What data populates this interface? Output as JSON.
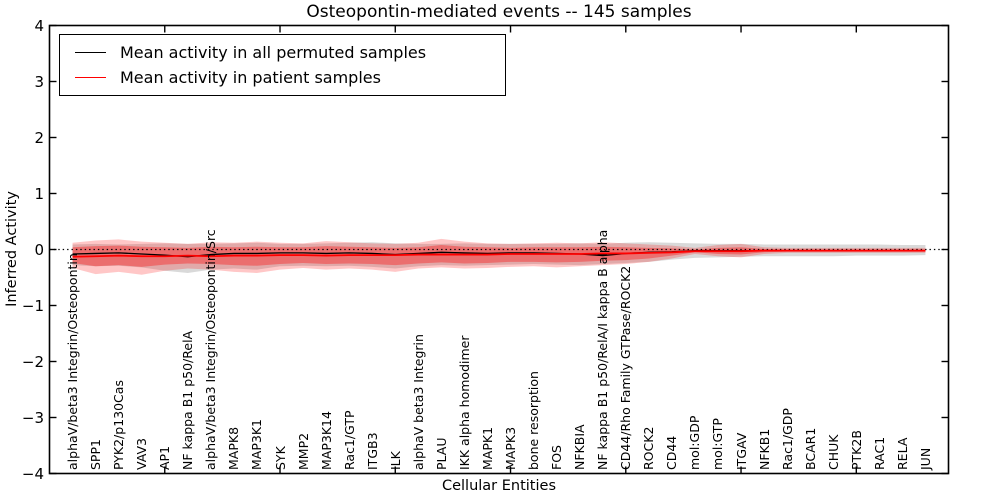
{
  "chart_data": {
    "type": "line",
    "title": "Osteopontin-mediated events -- 145 samples",
    "xlabel": "Cellular Entities",
    "ylabel": "Inferred Activity",
    "ylim": [
      -4,
      4
    ],
    "xlim": [
      0,
      39
    ],
    "grid": false,
    "zero_line": 0,
    "yticks": [
      {
        "v": 4,
        "label": "4"
      },
      {
        "v": 3,
        "label": "3"
      },
      {
        "v": 2,
        "label": "2"
      },
      {
        "v": 1,
        "label": "1"
      },
      {
        "v": 0,
        "label": "0"
      },
      {
        "v": -1,
        "label": "−1"
      },
      {
        "v": -2,
        "label": "−2"
      },
      {
        "v": -3,
        "label": "−3"
      },
      {
        "v": -4,
        "label": "−4"
      }
    ],
    "xticks_unlabeled": [
      5,
      10,
      15,
      20,
      25,
      30,
      35
    ],
    "categories": [
      "alphaV/beta3 Integrin/Osteopontin",
      "SPP1",
      "PYK2/p130Cas",
      "VAV3",
      "AP1",
      "NF kappa B1 p50/RelA",
      "alphaV/beta3 Integrin/Osteopontin/Src",
      "MAPK8",
      "MAP3K1",
      "SYK",
      "MMP2",
      "MAP3K14",
      "Rac1/GTP",
      "ITGB3",
      "ILK",
      "alphaV beta3 Integrin",
      "PLAU",
      "IKK alpha homodimer",
      "MAPK1",
      "MAPK3",
      "bone resorption",
      "FOS",
      "NFKBIA",
      "NF kappa B1 p50/RelA/I kappa B alpha",
      "CD44/Rho Family GTPase/ROCK2",
      "ROCK2",
      "CD44",
      "mol:GDP",
      "mol:GTP",
      "ITGAV",
      "NFKB1",
      "Rac1/GDP",
      "BCAR1",
      "CHUK",
      "PTK2B",
      "RAC1",
      "RELA",
      "JUN"
    ],
    "series": [
      {
        "name": "Mean activity in all permuted samples",
        "color": "#000000",
        "values": [
          -0.08,
          -0.07,
          -0.06,
          -0.08,
          -0.1,
          -0.13,
          -0.09,
          -0.07,
          -0.07,
          -0.06,
          -0.06,
          -0.07,
          -0.06,
          -0.07,
          -0.09,
          -0.07,
          -0.05,
          -0.06,
          -0.07,
          -0.06,
          -0.06,
          -0.07,
          -0.08,
          -0.11,
          -0.07,
          -0.05,
          -0.04,
          -0.02,
          -0.02,
          -0.02,
          -0.02,
          -0.02,
          -0.02,
          -0.02,
          -0.02,
          -0.02,
          -0.02,
          -0.02
        ]
      },
      {
        "name": "Mean activity in patient samples",
        "color": "#ff0000",
        "values": [
          -0.13,
          -0.12,
          -0.11,
          -0.12,
          -0.12,
          -0.11,
          -0.12,
          -0.11,
          -0.11,
          -0.1,
          -0.1,
          -0.11,
          -0.1,
          -0.1,
          -0.1,
          -0.09,
          -0.09,
          -0.09,
          -0.09,
          -0.08,
          -0.08,
          -0.08,
          -0.08,
          -0.07,
          -0.07,
          -0.06,
          -0.05,
          -0.03,
          -0.03,
          -0.03,
          -0.02,
          -0.02,
          -0.02,
          -0.02,
          -0.02,
          -0.02,
          -0.02,
          -0.02
        ]
      }
    ],
    "bands": [
      {
        "name": "permuted-samples-range",
        "color": "rgba(0,0,0,0.15)",
        "hi": [
          0.09,
          0.1,
          0.09,
          0.1,
          0.11,
          0.1,
          0.1,
          0.11,
          0.12,
          0.1,
          0.1,
          0.11,
          0.12,
          0.13,
          0.11,
          0.1,
          0.1,
          0.11,
          0.1,
          0.1,
          0.1,
          0.1,
          0.11,
          0.1,
          0.12,
          0.13,
          0.12,
          0.11,
          0.1,
          0.1,
          0.09,
          0.09,
          0.09,
          0.09,
          0.09,
          0.09,
          0.08,
          0.08
        ],
        "lo": [
          -0.28,
          -0.3,
          -0.29,
          -0.32,
          -0.38,
          -0.42,
          -0.36,
          -0.34,
          -0.36,
          -0.3,
          -0.29,
          -0.3,
          -0.29,
          -0.31,
          -0.34,
          -0.3,
          -0.28,
          -0.29,
          -0.28,
          -0.27,
          -0.26,
          -0.27,
          -0.28,
          -0.26,
          -0.24,
          -0.22,
          -0.18,
          -0.15,
          -0.14,
          -0.13,
          -0.12,
          -0.12,
          -0.12,
          -0.12,
          -0.11,
          -0.11,
          -0.11,
          -0.1
        ]
      },
      {
        "name": "patient-samples-outer-range",
        "color": "rgba(255,0,0,0.22)",
        "hi": [
          0.12,
          0.16,
          0.18,
          0.14,
          0.12,
          0.1,
          0.13,
          0.12,
          0.14,
          0.12,
          0.11,
          0.15,
          0.13,
          0.11,
          0.1,
          0.12,
          0.19,
          0.14,
          0.11,
          0.1,
          0.11,
          0.12,
          0.11,
          0.13,
          0.11,
          0.09,
          0.07,
          0.03,
          0.08,
          0.1,
          0.04,
          0.03,
          0.03,
          0.03,
          0.03,
          0.03,
          0.03,
          0.03
        ],
        "lo": [
          -0.33,
          -0.44,
          -0.4,
          -0.45,
          -0.38,
          -0.34,
          -0.36,
          -0.4,
          -0.42,
          -0.36,
          -0.33,
          -0.36,
          -0.34,
          -0.36,
          -0.4,
          -0.34,
          -0.32,
          -0.34,
          -0.33,
          -0.31,
          -0.3,
          -0.32,
          -0.3,
          -0.28,
          -0.26,
          -0.22,
          -0.16,
          -0.08,
          -0.12,
          -0.14,
          -0.08,
          -0.06,
          -0.06,
          -0.06,
          -0.06,
          -0.06,
          -0.06,
          -0.06
        ]
      },
      {
        "name": "patient-samples-inner-range",
        "color": "rgba(255,0,0,0.35)",
        "hi": [
          0.04,
          0.06,
          0.07,
          0.05,
          0.04,
          0.03,
          0.05,
          0.04,
          0.05,
          0.04,
          0.04,
          0.06,
          0.05,
          0.04,
          0.03,
          0.04,
          0.08,
          0.05,
          0.04,
          0.03,
          0.04,
          0.04,
          0.04,
          0.05,
          0.04,
          0.03,
          0.02,
          0.0,
          0.03,
          0.04,
          0.01,
          0.0,
          0.0,
          0.0,
          0.0,
          0.0,
          0.0,
          0.0
        ],
        "lo": [
          -0.24,
          -0.3,
          -0.28,
          -0.31,
          -0.27,
          -0.25,
          -0.26,
          -0.28,
          -0.29,
          -0.26,
          -0.24,
          -0.26,
          -0.25,
          -0.26,
          -0.28,
          -0.25,
          -0.23,
          -0.25,
          -0.24,
          -0.22,
          -0.22,
          -0.23,
          -0.22,
          -0.2,
          -0.19,
          -0.16,
          -0.11,
          -0.05,
          -0.08,
          -0.09,
          -0.05,
          -0.04,
          -0.04,
          -0.04,
          -0.04,
          -0.04,
          -0.04,
          -0.04
        ]
      }
    ],
    "legend": {
      "position": "upper left",
      "entries": [
        {
          "label": "Mean activity in all permuted samples",
          "color": "#000000"
        },
        {
          "label": "Mean activity in patient samples",
          "color": "#ff0000"
        }
      ]
    }
  }
}
